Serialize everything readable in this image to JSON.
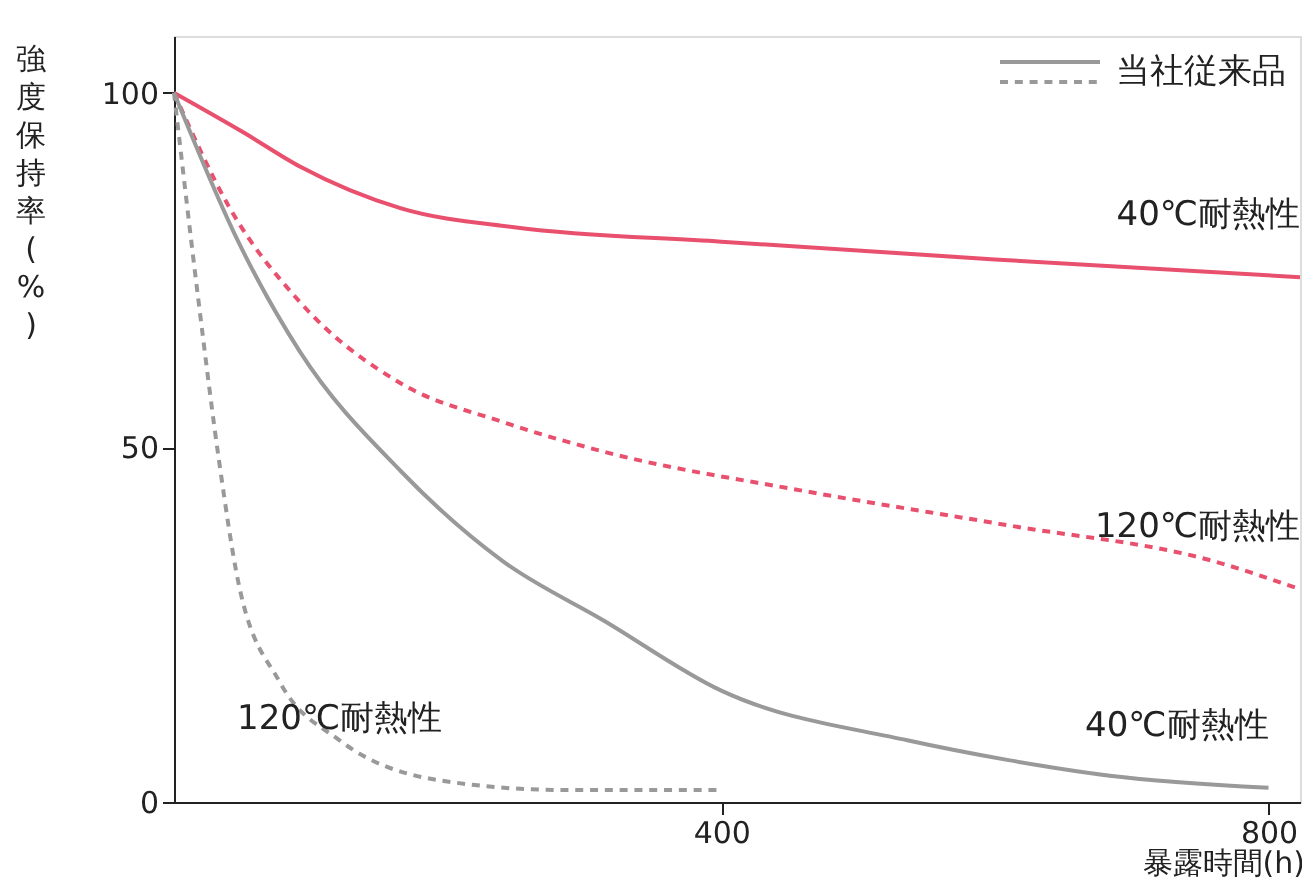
{
  "chart_data": {
    "type": "line",
    "xlabel": "暴露時間(h)",
    "ylabel": "強度保持率(%)",
    "xlim": [
      0,
      823
    ],
    "ylim": [
      0,
      108
    ],
    "xticks": [
      400,
      800
    ],
    "yticks": [
      0,
      50,
      100
    ],
    "grid": false,
    "legend": "top right",
    "series": [
      {
        "color": "#e8506e",
        "line_style": "solid",
        "x": [
          0,
          50,
          92,
          166,
          250,
          400,
          600,
          823
        ],
        "values": [
          100,
          94.5,
          89.6,
          83.7,
          81,
          79,
          76.5,
          74
        ]
      },
      {
        "color": "#e8506e",
        "line_style": "dashed",
        "x": [
          0,
          40,
          92,
          166,
          240,
          314,
          462,
          610,
          759,
          823
        ],
        "values": [
          100,
          84,
          70.5,
          59,
          53.6,
          49.4,
          43.8,
          39,
          34,
          30
        ]
      },
      {
        "name": "当社従来品",
        "color": "#999999",
        "line_style": "solid",
        "x": [
          0,
          47,
          92,
          166,
          240,
          314,
          400,
          536,
          610,
          684,
          800
        ],
        "values": [
          100,
          79,
          63.5,
          46.6,
          34,
          25.6,
          15.7,
          8.7,
          5.9,
          3.7,
          2
        ]
      },
      {
        "color": "#999999",
        "line_style": "dashed",
        "x": [
          0,
          18,
          33,
          47,
          77,
          121,
          196,
          284,
          400
        ],
        "values": [
          100,
          70.5,
          48,
          31,
          17,
          8.7,
          3,
          1.7,
          1.7
        ]
      }
    ],
    "annotations": [
      {
        "text": "40℃耐熱性",
        "x": 823,
        "y": 74
      },
      {
        "text": "120℃耐熱性",
        "x": 823,
        "y": 30
      },
      {
        "text": "40℃耐熱性",
        "x": 800,
        "y": 2
      },
      {
        "text": "120℃耐熱性",
        "x": 196,
        "y": 3
      }
    ]
  }
}
